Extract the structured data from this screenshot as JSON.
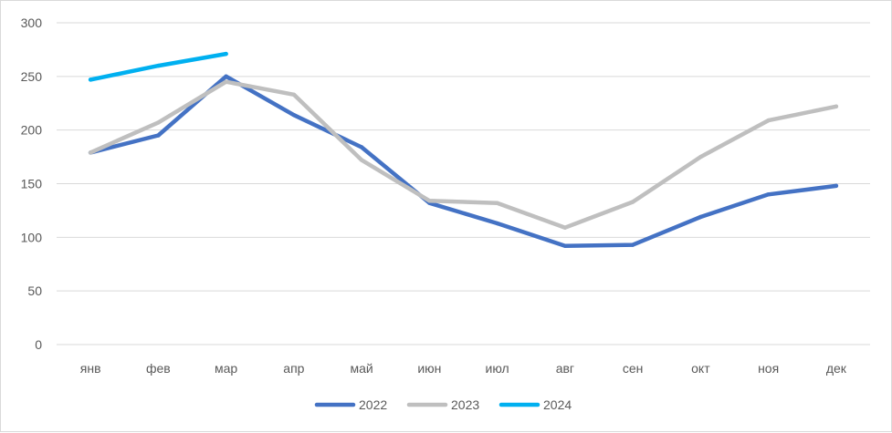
{
  "chart_data": {
    "type": "line",
    "categories": [
      "янв",
      "фев",
      "мар",
      "апр",
      "май",
      "июн",
      "июл",
      "авг",
      "сен",
      "окт",
      "ноя",
      "дек"
    ],
    "series": [
      {
        "name": "2022",
        "color": "#4472c4",
        "values": [
          179,
          195,
          250,
          214,
          184,
          132,
          113,
          92,
          93,
          119,
          140,
          148
        ]
      },
      {
        "name": "2023",
        "color": "#bfbfbf",
        "values": [
          179,
          207,
          245,
          233,
          172,
          134,
          132,
          109,
          133,
          175,
          209,
          222
        ]
      },
      {
        "name": "2024",
        "color": "#00b0f0",
        "values": [
          247,
          260,
          271,
          null,
          null,
          null,
          null,
          null,
          null,
          null,
          null,
          null
        ]
      }
    ],
    "yticks": [
      0,
      50,
      100,
      150,
      200,
      250,
      300
    ],
    "ylim": [
      0,
      300
    ],
    "grid": true,
    "legend_position": "bottom"
  }
}
